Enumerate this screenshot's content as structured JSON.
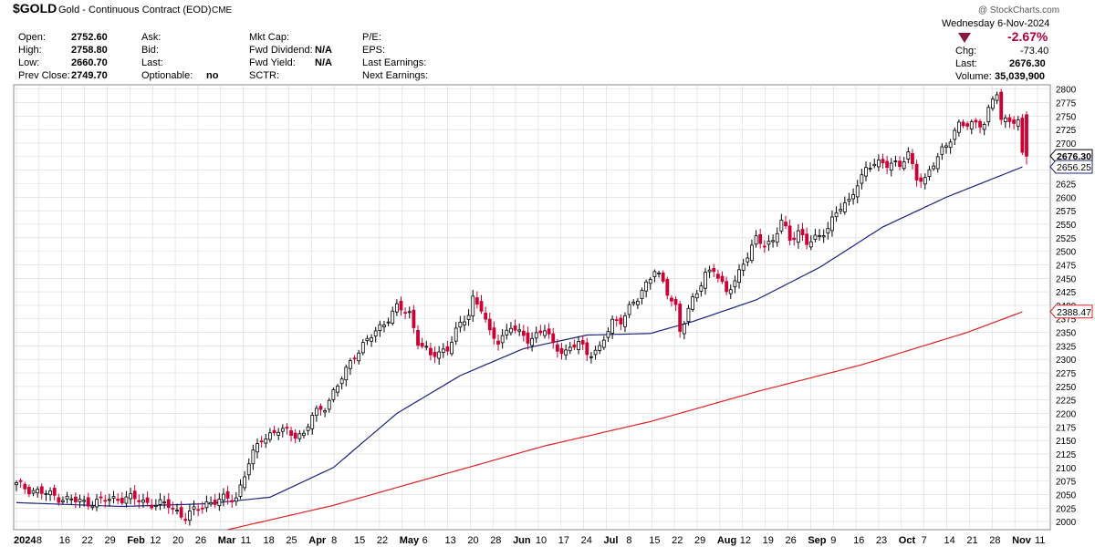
{
  "header": {
    "symbol": "$GOLD",
    "name": "Gold - Continuous Contract (EOD)",
    "exchange": "CME",
    "copyright": "@ StockCharts.com",
    "date": "Wednesday  6-Nov-2024"
  },
  "quote": {
    "open_label": "Open:",
    "open": "2752.60",
    "high_label": "High:",
    "high": "2758.80",
    "low_label": "Low:",
    "low": "2660.70",
    "prev_label": "Prev Close:",
    "prev": "2749.70",
    "ask_label": "Ask:",
    "bid_label": "Bid:",
    "last_label": "Last:",
    "optionable_label": "Optionable:",
    "optionable": "no",
    "mktcap_label": "Mkt Cap:",
    "fwddiv_label": "Fwd Dividend:",
    "fwddiv": "N/A",
    "fwdyield_label": "Fwd Yield:",
    "fwdyield": "N/A",
    "sctr_label": "SCTR:",
    "pe_label": "P/E:",
    "eps_label": "EPS:",
    "lastearn_label": "Last Earnings:",
    "nextearn_label": "Next Earnings:",
    "pct_change": "-2.67%",
    "chg_label": "Chg:",
    "chg": "-73.40",
    "last2_label": "Last:",
    "last2": "2676.30",
    "volume_label": "Volume:",
    "volume": "35,039,900"
  },
  "colors": {
    "up": "#000000",
    "down": "#cc0033",
    "ma50": "#1a237e",
    "ma200": "#dd2222",
    "grid": "#d9d9d9"
  },
  "chart_data": {
    "type": "candlestick",
    "ylim": [
      1985,
      2808
    ],
    "y_ticks": [
      2000,
      2025,
      2050,
      2075,
      2100,
      2125,
      2150,
      2175,
      2200,
      2225,
      2250,
      2275,
      2300,
      2325,
      2350,
      2375,
      2400,
      2425,
      2450,
      2475,
      2500,
      2525,
      2550,
      2575,
      2600,
      2625,
      2650,
      2675,
      2700,
      2725,
      2750,
      2775,
      2800
    ],
    "x_labels": [
      {
        "label": "2024",
        "bold": true
      },
      {
        "label": "8"
      },
      {
        "label": "16"
      },
      {
        "label": "22"
      },
      {
        "label": "29"
      },
      {
        "label": "Feb",
        "bold": true
      },
      {
        "label": "12"
      },
      {
        "label": "20"
      },
      {
        "label": "26"
      },
      {
        "label": "Mar",
        "bold": true
      },
      {
        "label": "11"
      },
      {
        "label": "18"
      },
      {
        "label": "25"
      },
      {
        "label": "Apr",
        "bold": true
      },
      {
        "label": "8"
      },
      {
        "label": "15"
      },
      {
        "label": "22"
      },
      {
        "label": "May",
        "bold": true
      },
      {
        "label": "6"
      },
      {
        "label": "13"
      },
      {
        "label": "20"
      },
      {
        "label": "28"
      },
      {
        "label": "Jun",
        "bold": true
      },
      {
        "label": "10"
      },
      {
        "label": "17"
      },
      {
        "label": "24"
      },
      {
        "label": "Jul",
        "bold": true
      },
      {
        "label": "8"
      },
      {
        "label": "15"
      },
      {
        "label": "22"
      },
      {
        "label": "29"
      },
      {
        "label": "Aug",
        "bold": true
      },
      {
        "label": "12"
      },
      {
        "label": "19"
      },
      {
        "label": "26"
      },
      {
        "label": "Sep",
        "bold": true
      },
      {
        "label": "9"
      },
      {
        "label": "16"
      },
      {
        "label": "23"
      },
      {
        "label": "Oct",
        "bold": true
      },
      {
        "label": "7"
      },
      {
        "label": "14"
      },
      {
        "label": "21"
      },
      {
        "label": "28"
      },
      {
        "label": "Nov",
        "bold": true
      },
      {
        "label": "11"
      }
    ],
    "price_tags": [
      {
        "value": 2676.3,
        "label": "2676.30",
        "kind": "price"
      },
      {
        "value": 2656.25,
        "label": "2656.25",
        "kind": "ma50"
      },
      {
        "value": 2388.47,
        "label": "2388.47",
        "kind": "ma200"
      }
    ],
    "anchors": [
      [
        0,
        2068
      ],
      [
        4,
        2058
      ],
      [
        10,
        2045
      ],
      [
        16,
        2035
      ],
      [
        20,
        2038
      ],
      [
        26,
        2045
      ],
      [
        31,
        2035
      ],
      [
        36,
        2030
      ],
      [
        40,
        2008
      ],
      [
        45,
        2035
      ],
      [
        52,
        2045
      ],
      [
        55,
        2108
      ],
      [
        58,
        2155
      ],
      [
        62,
        2168
      ],
      [
        68,
        2160
      ],
      [
        70,
        2195
      ],
      [
        73,
        2215
      ],
      [
        76,
        2250
      ],
      [
        80,
        2310
      ],
      [
        84,
        2342
      ],
      [
        88,
        2378
      ],
      [
        90,
        2395
      ],
      [
        93,
        2385
      ],
      [
        95,
        2335
      ],
      [
        98,
        2305
      ],
      [
        102,
        2322
      ],
      [
        104,
        2350
      ],
      [
        107,
        2385
      ],
      [
        108,
        2415
      ],
      [
        110,
        2395
      ],
      [
        112,
        2345
      ],
      [
        114,
        2335
      ],
      [
        117,
        2362
      ],
      [
        119,
        2345
      ],
      [
        121,
        2338
      ],
      [
        125,
        2355
      ],
      [
        127,
        2325
      ],
      [
        130,
        2315
      ],
      [
        133,
        2330
      ],
      [
        135,
        2312
      ],
      [
        138,
        2320
      ],
      [
        141,
        2368
      ],
      [
        143,
        2375
      ],
      [
        145,
        2395
      ],
      [
        147,
        2410
      ],
      [
        149,
        2440
      ],
      [
        151,
        2470
      ],
      [
        152,
        2455
      ],
      [
        154,
        2420
      ],
      [
        156,
        2398
      ],
      [
        157,
        2355
      ],
      [
        159,
        2393
      ],
      [
        161,
        2420
      ],
      [
        163,
        2460
      ],
      [
        165,
        2470
      ],
      [
        167,
        2435
      ],
      [
        168,
        2420
      ],
      [
        170,
        2448
      ],
      [
        172,
        2480
      ],
      [
        174,
        2505
      ],
      [
        175,
        2520
      ],
      [
        177,
        2515
      ],
      [
        179,
        2520
      ],
      [
        181,
        2555
      ],
      [
        183,
        2520
      ],
      [
        185,
        2540
      ],
      [
        187,
        2515
      ],
      [
        190,
        2525
      ],
      [
        193,
        2560
      ],
      [
        195,
        2580
      ],
      [
        197,
        2590
      ],
      [
        199,
        2630
      ],
      [
        201,
        2650
      ],
      [
        203,
        2660
      ],
      [
        205,
        2665
      ],
      [
        207,
        2665
      ],
      [
        209,
        2655
      ],
      [
        211,
        2680
      ],
      [
        213,
        2640
      ],
      [
        215,
        2630
      ],
      [
        217,
        2660
      ],
      [
        219,
        2690
      ],
      [
        221,
        2710
      ],
      [
        223,
        2730
      ],
      [
        225,
        2735
      ],
      [
        227,
        2740
      ],
      [
        229,
        2735
      ],
      [
        231,
        2778
      ],
      [
        232,
        2795
      ],
      [
        233,
        2745
      ],
      [
        235,
        2745
      ],
      [
        236,
        2740
      ],
      [
        237,
        2735
      ],
      [
        238,
        2676
      ]
    ],
    "ma50": [
      [
        0,
        2035
      ],
      [
        25,
        2028
      ],
      [
        45,
        2033
      ],
      [
        60,
        2045
      ],
      [
        75,
        2100
      ],
      [
        90,
        2200
      ],
      [
        105,
        2270
      ],
      [
        120,
        2320
      ],
      [
        135,
        2345
      ],
      [
        150,
        2348
      ],
      [
        160,
        2370
      ],
      [
        175,
        2410
      ],
      [
        190,
        2470
      ],
      [
        205,
        2545
      ],
      [
        220,
        2600
      ],
      [
        238,
        2656
      ]
    ],
    "ma200": [
      [
        50,
        1985
      ],
      [
        75,
        2030
      ],
      [
        100,
        2085
      ],
      [
        125,
        2140
      ],
      [
        150,
        2185
      ],
      [
        175,
        2240
      ],
      [
        200,
        2290
      ],
      [
        225,
        2350
      ],
      [
        238,
        2388
      ]
    ]
  }
}
